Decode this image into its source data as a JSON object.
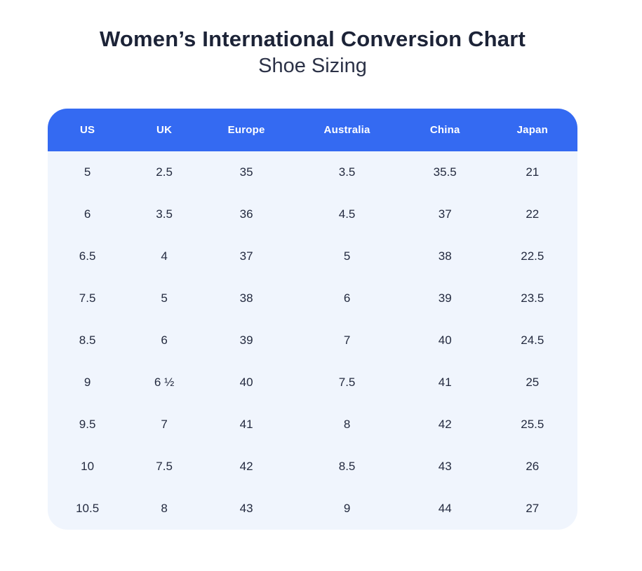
{
  "page": {
    "title": "Women’s International Conversion Chart",
    "subtitle": "Shoe Sizing"
  },
  "colors": {
    "header_bg": "#346af2",
    "header_text": "#ffffff",
    "body_bg": "#f0f5fd",
    "cell_text": "#232a3f",
    "title_text": "#1c2337",
    "subtitle_text": "#2c3247"
  },
  "chart_data": {
    "type": "table",
    "title": "Women’s International Conversion Chart",
    "subtitle": "Shoe Sizing",
    "columns": [
      "US",
      "UK",
      "Europe",
      "Australia",
      "China",
      "Japan"
    ],
    "rows": [
      [
        "5",
        "2.5",
        "35",
        "3.5",
        "35.5",
        "21"
      ],
      [
        "6",
        "3.5",
        "36",
        "4.5",
        "37",
        "22"
      ],
      [
        "6.5",
        "4",
        "37",
        "5",
        "38",
        "22.5"
      ],
      [
        "7.5",
        "5",
        "38",
        "6",
        "39",
        "23.5"
      ],
      [
        "8.5",
        "6",
        "39",
        "7",
        "40",
        "24.5"
      ],
      [
        "9",
        "6 ½",
        "40",
        "7.5",
        "41",
        "25"
      ],
      [
        "9.5",
        "7",
        "41",
        "8",
        "42",
        "25.5"
      ],
      [
        "10",
        "7.5",
        "42",
        "8.5",
        "43",
        "26"
      ],
      [
        "10.5",
        "8",
        "43",
        "9",
        "44",
        "27"
      ]
    ],
    "layout": {
      "legend": "none",
      "grid": "off",
      "header_position": "top",
      "column_width_pct": [
        15,
        14,
        17,
        21,
        16,
        17
      ]
    }
  }
}
